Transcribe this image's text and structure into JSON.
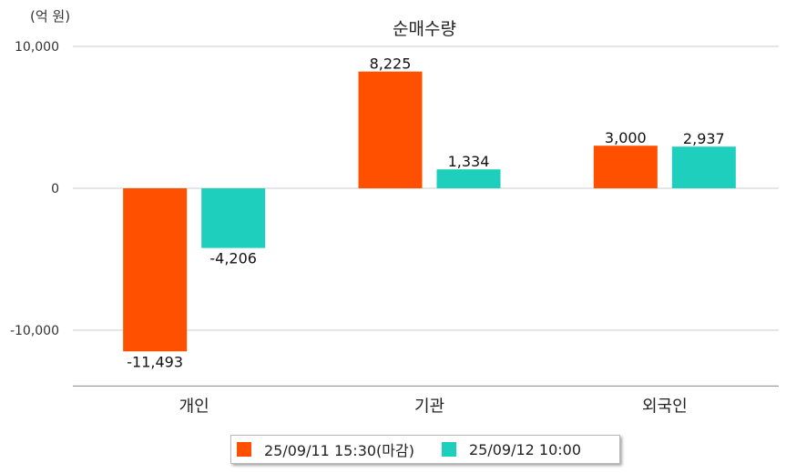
{
  "chart_data": {
    "type": "bar",
    "title": "순매수량",
    "ylabel": "(억 원)",
    "xlabel": "",
    "categories": [
      "개인",
      "기관",
      "외국인"
    ],
    "series": [
      {
        "name": "25/09/11 15:30(마감)",
        "values": [
          -11493,
          8225,
          3000
        ],
        "labels": [
          "-11,493",
          "8,225",
          "3,000"
        ],
        "color": "#ff5000"
      },
      {
        "name": "25/09/12 10:00",
        "values": [
          -4206,
          1334,
          2937
        ],
        "labels": [
          "-4,206",
          "1,334",
          "2,937"
        ],
        "color": "#1ecfbe"
      }
    ],
    "ylim": [
      -14000,
      10000
    ],
    "yticks": [
      10000,
      0,
      -10000
    ],
    "ytick_labels": [
      "10,000",
      "0",
      "-10,000"
    ],
    "grid": true,
    "legend_position": "bottom-center"
  }
}
